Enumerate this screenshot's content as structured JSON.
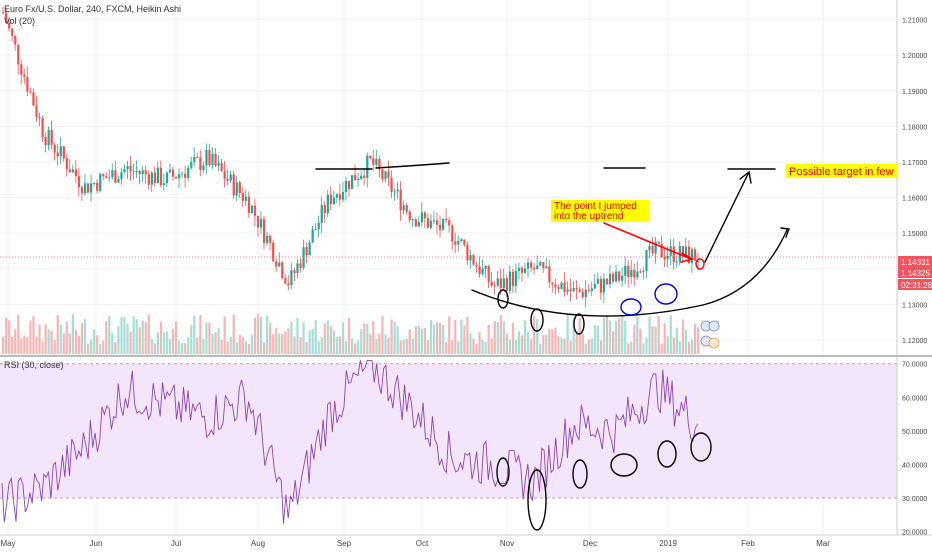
{
  "chart_meta": {
    "symbol": "Euro Fx/U.S. Dollar, 240, FXCM, Heikin Ashi",
    "volume_label": "Vol (20)",
    "rsi_label": "RSI (30, close)"
  },
  "badges": {
    "last_price": "1.14331",
    "second_price": "1.14325",
    "countdown": "02:31:28"
  },
  "annotations": {
    "target_label": "Possible target in few",
    "entry_label_1": "The point I jumped",
    "entry_label_2": "into the uptrend"
  },
  "colors": {
    "bull": "#26a69a",
    "bear": "#ef5350",
    "badge_red": "#f7525f",
    "rsi_band": "#f3e6fb",
    "rsi_line": "#8e44ad",
    "annotation_yellow": "#ffff00",
    "annotation_red": "#ff0000",
    "ink_black": "#000000",
    "ink_blue": "#0000cc"
  },
  "chart_data": [
    {
      "type": "line",
      "name": "price",
      "title": "Euro Fx/U.S. Dollar, 240, FXCM, Heikin Ashi",
      "y_ticks": [
        "1.21000",
        "1.20000",
        "1.19000",
        "1.18000",
        "1.17000",
        "1.16000",
        "1.15000",
        "1.14000",
        "1.13000",
        "1.12000"
      ],
      "y_tick_values": [
        1.21,
        1.2,
        1.19,
        1.18,
        1.17,
        1.16,
        1.15,
        1.14,
        1.13,
        1.12
      ],
      "ylim": [
        1.1155,
        1.2155
      ],
      "x_ticks": [
        "May",
        "Jun",
        "Jul",
        "Aug",
        "Sep",
        "Oct",
        "Nov",
        "Dec",
        "2019",
        "Feb",
        "Mar"
      ],
      "x": [
        "May 1",
        "May 15",
        "Jun 1",
        "Jun 15",
        "Jul 1",
        "Jul 15",
        "Aug 1",
        "Aug 15",
        "Sep 1",
        "Sep 15",
        "Oct 1",
        "Oct 15",
        "Nov 1",
        "Nov 15",
        "Dec 1",
        "Dec 15",
        "Jan 1",
        "Jan 10"
      ],
      "values": [
        1.212,
        1.178,
        1.163,
        1.168,
        1.165,
        1.171,
        1.159,
        1.136,
        1.16,
        1.17,
        1.155,
        1.15,
        1.135,
        1.14,
        1.133,
        1.137,
        1.145,
        1.1433
      ],
      "last_price": 1.14331
    },
    {
      "type": "line",
      "name": "RSI",
      "title": "RSI (30, close)",
      "y_ticks": [
        "70.0000",
        "60.0000",
        "50.0000",
        "40.0000",
        "30.0000",
        "20.0000"
      ],
      "y_tick_values": [
        70,
        60,
        50,
        40,
        30,
        20
      ],
      "ylim": [
        19,
        72
      ],
      "band": [
        30,
        70
      ],
      "x": [
        "May 1",
        "May 15",
        "Jun 1",
        "Jun 15",
        "Jul 1",
        "Jul 15",
        "Aug 1",
        "Aug 15",
        "Sep 1",
        "Sep 15",
        "Oct 1",
        "Oct 15",
        "Nov 1",
        "Nov 15",
        "Dec 1",
        "Dec 15",
        "Jan 1",
        "Jan 10"
      ],
      "values": [
        28,
        33,
        45,
        62,
        58,
        54,
        60,
        25,
        55,
        70,
        57,
        42,
        40,
        35,
        52,
        50,
        63,
        52
      ]
    }
  ]
}
